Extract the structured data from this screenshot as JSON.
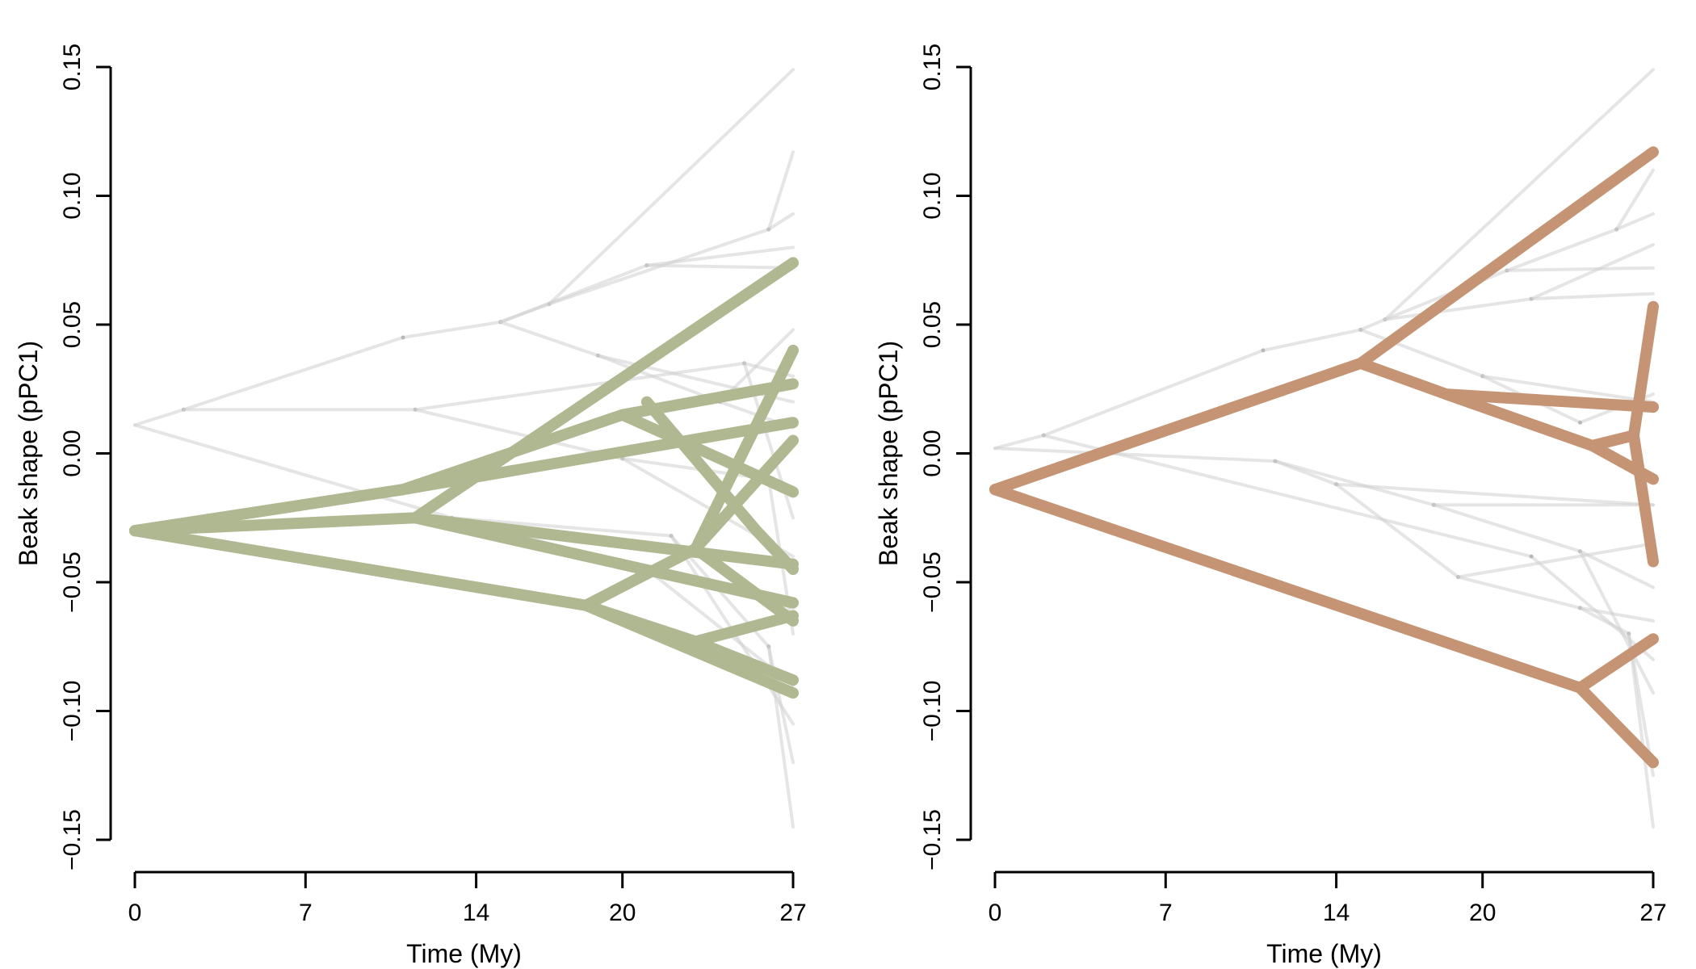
{
  "colors": {
    "background_lines": "#cfcfcf",
    "background_nodes": "#b0b0b0",
    "axis": "#000000"
  },
  "chart_data": [
    {
      "type": "line",
      "description": "phenogram",
      "xlabel": "Time (My)",
      "ylabel": "Beak shape (pPC1)",
      "xticks": [
        0,
        7,
        14,
        20,
        27
      ],
      "yticks": [
        -0.15,
        -0.1,
        -0.05,
        0.0,
        0.05,
        0.1,
        0.15
      ],
      "ytick_labels": [
        "−0.15",
        "−0.10",
        "−0.05",
        "0.00",
        "0.05",
        "0.10",
        "0.15"
      ],
      "xlim": [
        0,
        27
      ],
      "ylim": [
        -0.15,
        0.15
      ],
      "highlight_color": "#b0b892",
      "highlight_branches": [
        [
          [
            0,
            -0.03
          ],
          [
            11,
            -0.014
          ],
          [
            20,
            0.015
          ],
          [
            27,
            0.027
          ]
        ],
        [
          [
            0,
            -0.03
          ],
          [
            11.5,
            -0.025
          ],
          [
            27,
            0.074
          ]
        ],
        [
          [
            0,
            -0.03
          ],
          [
            11,
            -0.014
          ],
          [
            27,
            0.012
          ]
        ],
        [
          [
            20,
            0.015
          ],
          [
            24,
            -0.002
          ],
          [
            27,
            -0.015
          ]
        ],
        [
          [
            21,
            0.02
          ],
          [
            25.5,
            -0.03
          ],
          [
            27,
            -0.045
          ]
        ],
        [
          [
            11.5,
            -0.025
          ],
          [
            27,
            -0.043
          ]
        ],
        [
          [
            0,
            -0.03
          ],
          [
            18.5,
            -0.059
          ],
          [
            27,
            -0.093
          ]
        ],
        [
          [
            18.5,
            -0.059
          ],
          [
            23,
            -0.037
          ],
          [
            27,
            0.04
          ]
        ],
        [
          [
            18.5,
            -0.059
          ],
          [
            23,
            -0.073
          ],
          [
            27,
            -0.063
          ]
        ],
        [
          [
            23,
            -0.037
          ],
          [
            27,
            0.005
          ]
        ],
        [
          [
            11.5,
            -0.025
          ],
          [
            27,
            -0.058
          ]
        ],
        [
          [
            23,
            -0.037
          ],
          [
            27,
            -0.065
          ]
        ],
        [
          [
            23,
            -0.073
          ],
          [
            27,
            -0.088
          ]
        ]
      ],
      "background_branches": [
        [
          [
            0,
            0.011
          ],
          [
            2,
            0.017
          ],
          [
            11.5,
            0.017
          ],
          [
            20,
            -0.002
          ],
          [
            27,
            -0.04
          ]
        ],
        [
          [
            2,
            0.017
          ],
          [
            11,
            0.045
          ],
          [
            15,
            0.051
          ],
          [
            17,
            0.058
          ],
          [
            27,
            0.149
          ]
        ],
        [
          [
            15,
            0.051
          ],
          [
            21,
            0.073
          ],
          [
            27,
            0.072
          ]
        ],
        [
          [
            17,
            0.058
          ],
          [
            26,
            0.087
          ],
          [
            27,
            0.117
          ]
        ],
        [
          [
            26,
            0.087
          ],
          [
            27,
            0.093
          ]
        ],
        [
          [
            21,
            0.073
          ],
          [
            27,
            0.08
          ]
        ],
        [
          [
            15,
            0.051
          ],
          [
            19,
            0.038
          ],
          [
            27,
            0.02
          ]
        ],
        [
          [
            19,
            0.038
          ],
          [
            24,
            0.02
          ],
          [
            27,
            0.01
          ]
        ],
        [
          [
            24,
            0.02
          ],
          [
            27,
            0.048
          ]
        ],
        [
          [
            0,
            0.011
          ],
          [
            13,
            -0.025
          ],
          [
            21,
            -0.045
          ],
          [
            27,
            -0.06
          ]
        ],
        [
          [
            21,
            -0.045
          ],
          [
            27,
            -0.09
          ]
        ],
        [
          [
            13,
            -0.025
          ],
          [
            22,
            -0.032
          ],
          [
            27,
            -0.105
          ]
        ],
        [
          [
            22,
            -0.032
          ],
          [
            26,
            -0.075
          ],
          [
            27,
            -0.12
          ]
        ],
        [
          [
            26,
            -0.075
          ],
          [
            27,
            -0.145
          ]
        ],
        [
          [
            11.5,
            0.017
          ],
          [
            25,
            0.035
          ],
          [
            27,
            0.03
          ]
        ],
        [
          [
            25,
            0.035
          ],
          [
            27,
            -0.025
          ]
        ],
        [
          [
            20,
            -0.002
          ],
          [
            26,
            -0.01
          ],
          [
            27,
            -0.07
          ]
        ]
      ]
    },
    {
      "type": "line",
      "description": "phenogram",
      "xlabel": "Time (My)",
      "ylabel": "Beak shape (pPC1)",
      "xticks": [
        0,
        7,
        14,
        20,
        27
      ],
      "yticks": [
        -0.15,
        -0.1,
        -0.05,
        0.0,
        0.05,
        0.1,
        0.15
      ],
      "ytick_labels": [
        "−0.15",
        "−0.10",
        "−0.05",
        "0.00",
        "0.05",
        "0.10",
        "0.15"
      ],
      "xlim": [
        0,
        27
      ],
      "ylim": [
        -0.15,
        0.15
      ],
      "highlight_color": "#c49474",
      "highlight_branches": [
        [
          [
            0,
            -0.014
          ],
          [
            15,
            0.035
          ],
          [
            27,
            0.117
          ]
        ],
        [
          [
            15,
            0.035
          ],
          [
            18.5,
            0.023
          ],
          [
            27,
            0.018
          ]
        ],
        [
          [
            18.5,
            0.023
          ],
          [
            24.5,
            0.003
          ],
          [
            26.2,
            0.007
          ],
          [
            27,
            0.057
          ]
        ],
        [
          [
            26.2,
            0.007
          ],
          [
            27,
            -0.042
          ]
        ],
        [
          [
            24.5,
            0.003
          ],
          [
            27,
            -0.01
          ]
        ],
        [
          [
            0,
            -0.014
          ],
          [
            24,
            -0.091
          ],
          [
            27,
            -0.072
          ]
        ],
        [
          [
            24,
            -0.091
          ],
          [
            27,
            -0.12
          ]
        ]
      ],
      "background_branches": [
        [
          [
            0,
            0.002
          ],
          [
            2,
            0.007
          ],
          [
            11,
            0.04
          ],
          [
            15,
            0.048
          ],
          [
            16,
            0.052
          ],
          [
            27,
            0.149
          ]
        ],
        [
          [
            16,
            0.052
          ],
          [
            21,
            0.071
          ],
          [
            27,
            0.072
          ]
        ],
        [
          [
            21,
            0.071
          ],
          [
            25.5,
            0.087
          ],
          [
            27,
            0.11
          ]
        ],
        [
          [
            25.5,
            0.087
          ],
          [
            27,
            0.093
          ]
        ],
        [
          [
            16,
            0.052
          ],
          [
            22,
            0.06
          ],
          [
            27,
            0.062
          ]
        ],
        [
          [
            22,
            0.06
          ],
          [
            27,
            0.081
          ]
        ],
        [
          [
            15,
            0.048
          ],
          [
            20,
            0.03
          ],
          [
            27,
            0.02
          ]
        ],
        [
          [
            20,
            0.03
          ],
          [
            24,
            0.012
          ],
          [
            27,
            0.023
          ]
        ],
        [
          [
            0,
            0.002
          ],
          [
            11.5,
            -0.003
          ],
          [
            14,
            -0.012
          ],
          [
            27,
            -0.02
          ]
        ],
        [
          [
            14,
            -0.012
          ],
          [
            19,
            -0.048
          ],
          [
            27,
            -0.035
          ]
        ],
        [
          [
            19,
            -0.048
          ],
          [
            24,
            -0.06
          ],
          [
            27,
            -0.065
          ]
        ],
        [
          [
            24,
            -0.06
          ],
          [
            26,
            -0.07
          ],
          [
            27,
            -0.145
          ]
        ],
        [
          [
            26,
            -0.07
          ],
          [
            27,
            -0.125
          ]
        ],
        [
          [
            11.5,
            -0.003
          ],
          [
            18,
            -0.02
          ],
          [
            27,
            -0.02
          ]
        ],
        [
          [
            18,
            -0.02
          ],
          [
            24,
            -0.038
          ],
          [
            27,
            -0.093
          ]
        ],
        [
          [
            24,
            -0.038
          ],
          [
            27,
            -0.052
          ]
        ],
        [
          [
            2,
            0.007
          ],
          [
            22,
            -0.04
          ],
          [
            27,
            -0.08
          ]
        ]
      ]
    }
  ]
}
